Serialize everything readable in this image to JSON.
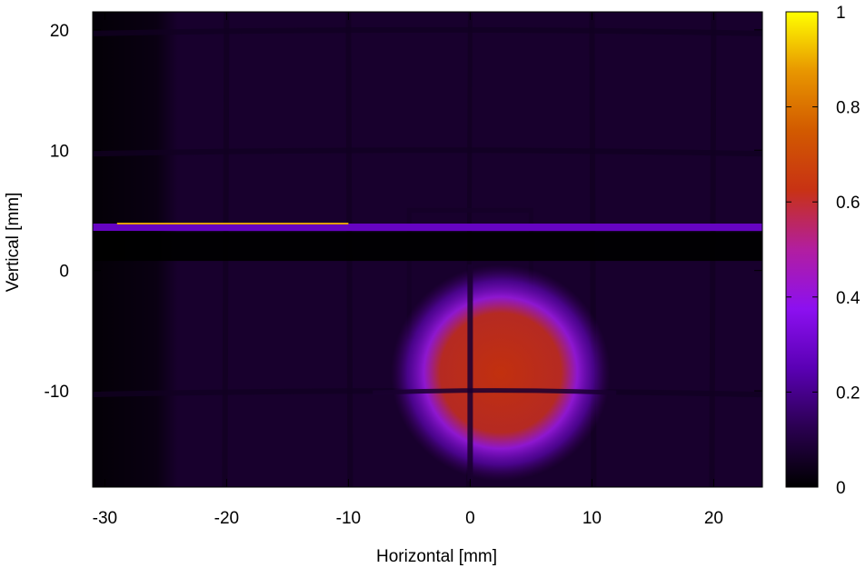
{
  "chart_data": {
    "type": "heatmap",
    "title": "",
    "xlabel": "Horizontal [mm]",
    "ylabel": "Vertical [mm]",
    "xlim": [
      -31,
      24
    ],
    "ylim": [
      -18,
      21.5
    ],
    "x_ticks": [
      -30,
      -20,
      -10,
      0,
      10,
      20
    ],
    "y_ticks": [
      -10,
      0,
      10,
      20
    ],
    "colorbar": {
      "range": [
        0,
        1
      ],
      "ticks": [
        0,
        0.2,
        0.4,
        0.6,
        0.8,
        1
      ],
      "tick_labels": [
        "0",
        "0.2",
        "0.4",
        "0.6",
        "0.8",
        "1"
      ],
      "colormap": [
        "#000000",
        "#2a0050",
        "#5a00b4",
        "#8c10f0",
        "#b21ea0",
        "#c83214",
        "#d25a00",
        "#e89600",
        "#ffff00"
      ]
    },
    "background_level": 0.07,
    "features": {
      "beam_spot": {
        "center": [
          2.5,
          -8.5
        ],
        "radius_mm": 9,
        "peak": 0.55
      },
      "slit_stripe": {
        "y": 3.6,
        "x_range": [
          -31,
          24
        ],
        "level": 0.28,
        "bright_segment_x_start": -29
      },
      "dark_band": {
        "y_range": [
          0.8,
          3.2
        ]
      },
      "vertical_grid_lines_x": [
        -20,
        -10,
        0,
        10,
        20
      ],
      "horizontal_grid_lines_y": [
        -10,
        10,
        20
      ],
      "frame_rect": {
        "x_range": [
          -5,
          5
        ],
        "y_range": [
          -5.5,
          5
        ]
      },
      "dark_left_region_x": [
        -31,
        -24
      ]
    }
  }
}
